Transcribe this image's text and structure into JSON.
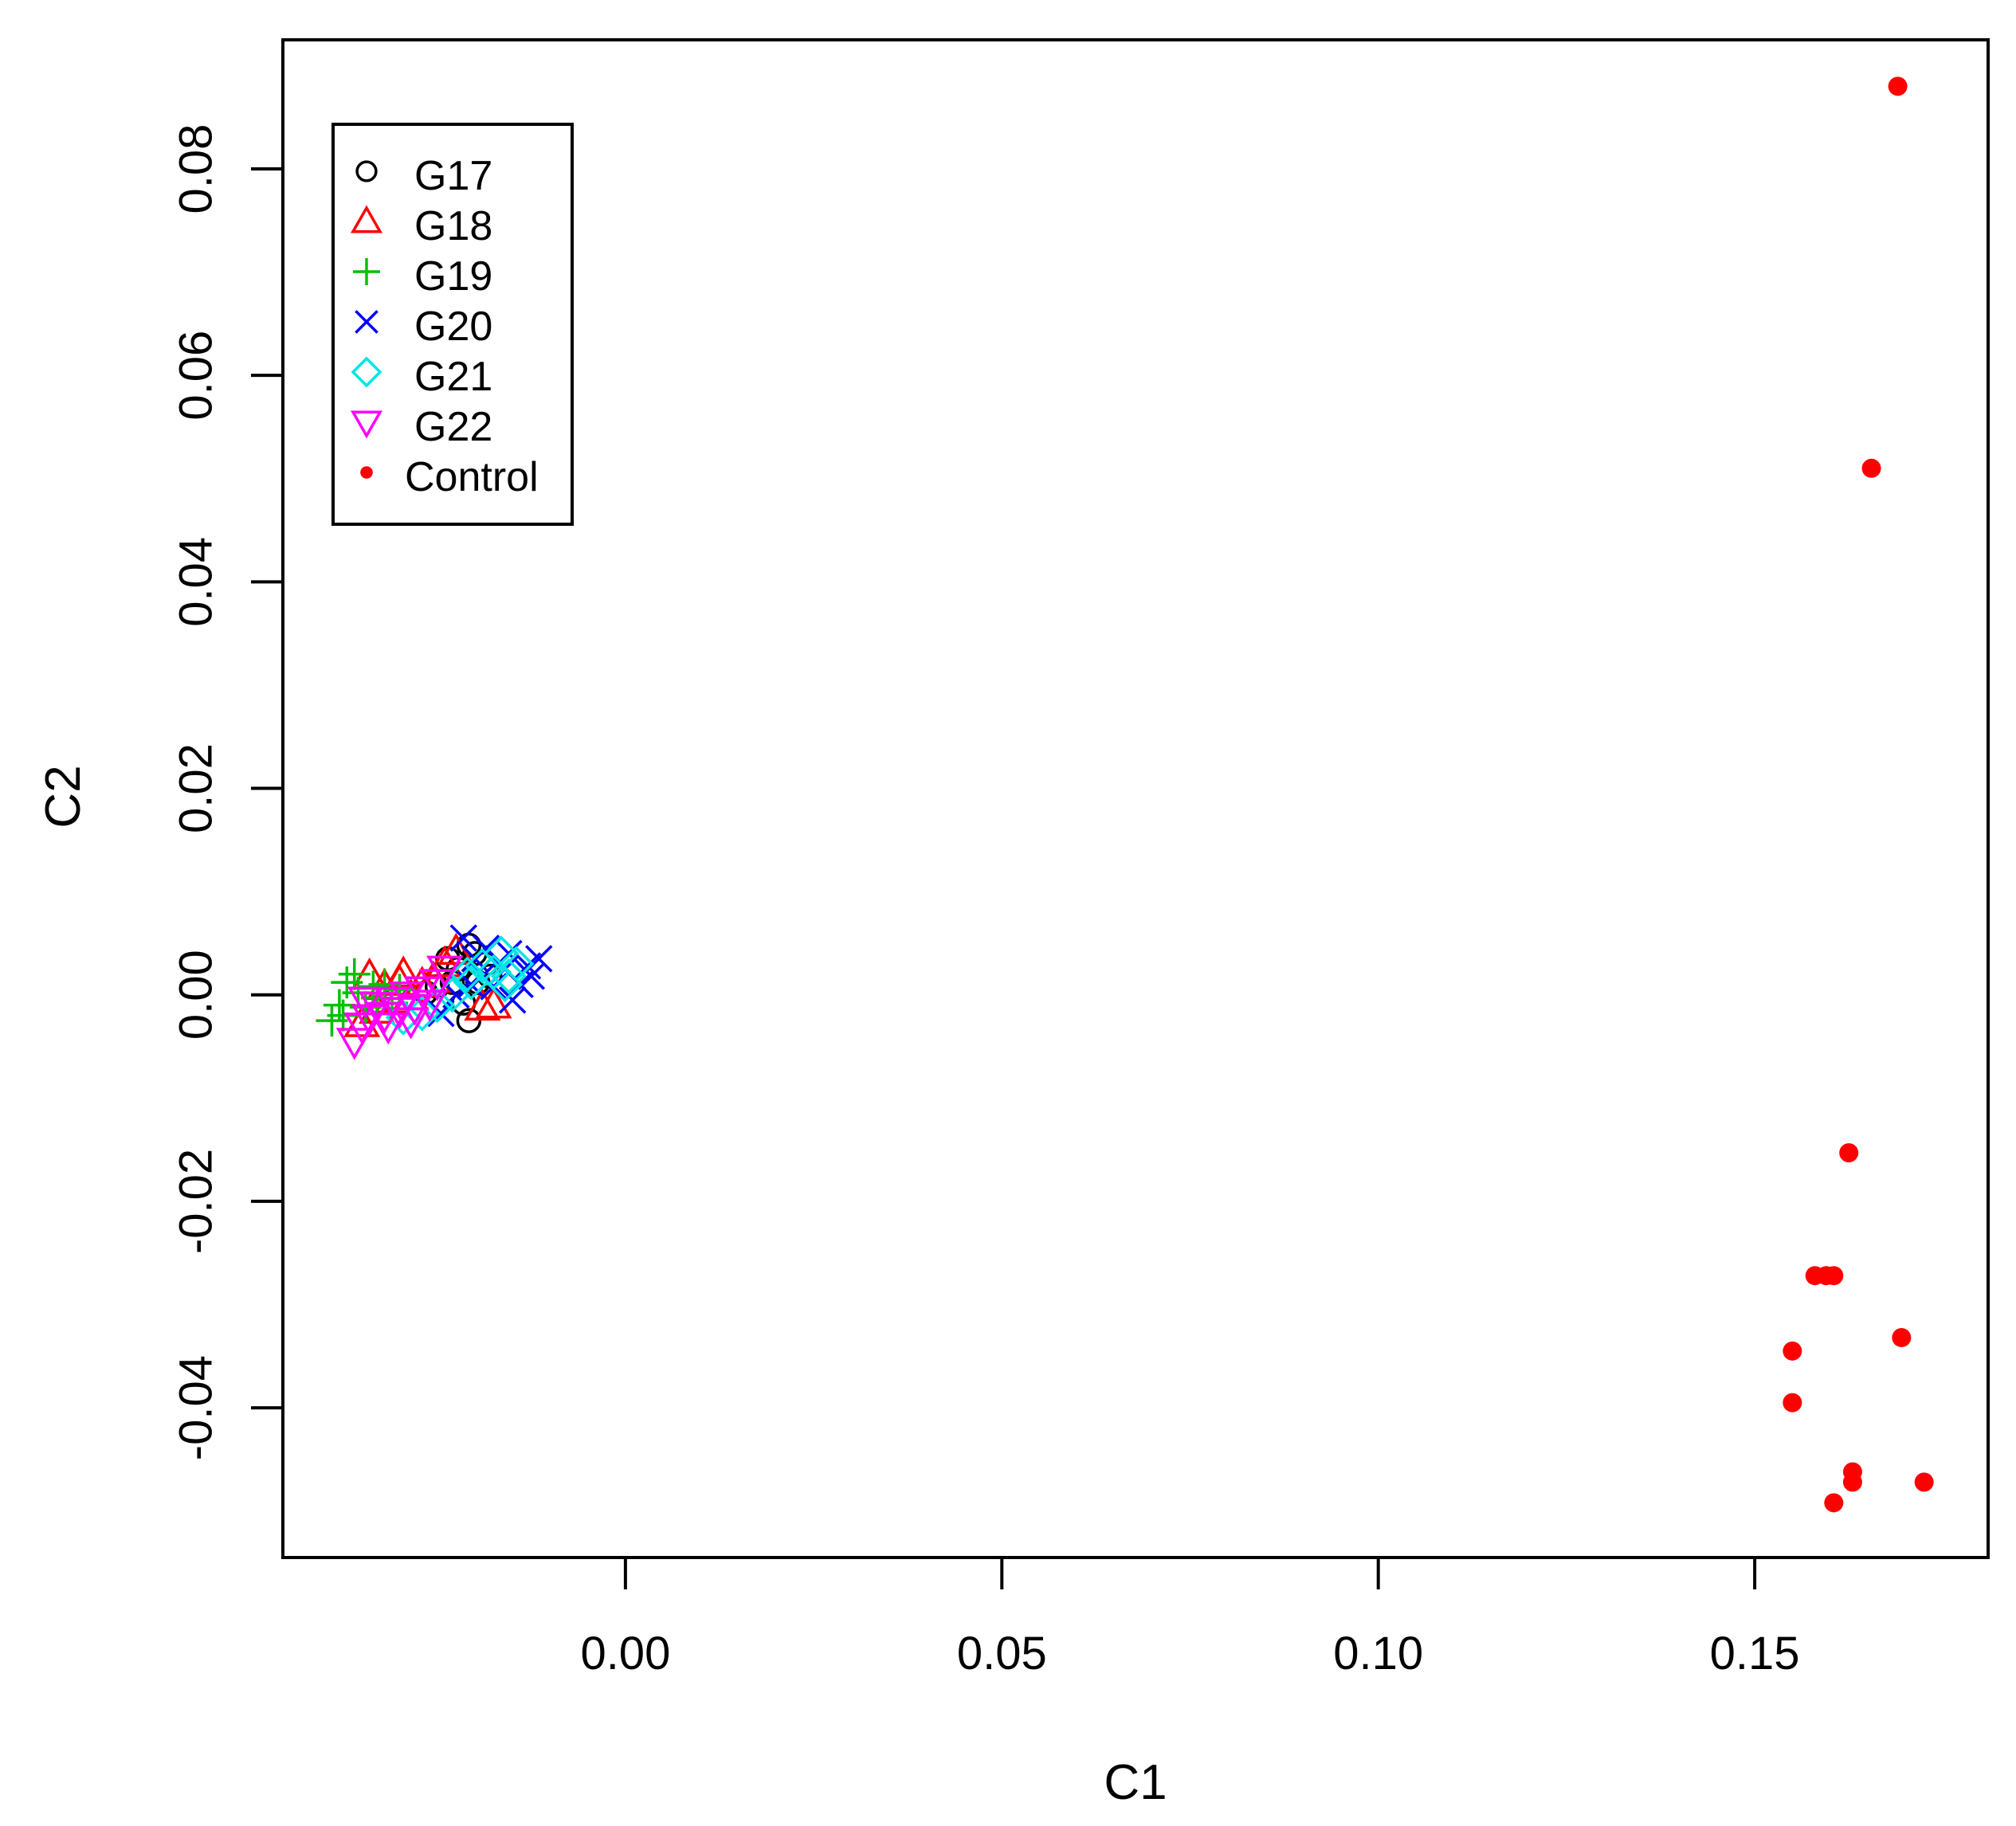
{
  "chart_data": {
    "type": "scatter",
    "title": "",
    "xlabel": "C1",
    "ylabel": "C2",
    "xlim": [
      -0.0455,
      0.181
    ],
    "ylim": [
      -0.0545,
      0.0925
    ],
    "x_ticks": [
      {
        "value": 0.0,
        "label": "0.00"
      },
      {
        "value": 0.05,
        "label": "0.05"
      },
      {
        "value": 0.1,
        "label": "0.10"
      },
      {
        "value": 0.15,
        "label": "0.15"
      }
    ],
    "y_ticks": [
      {
        "value": -0.04,
        "label": "-0.04"
      },
      {
        "value": -0.02,
        "label": "-0.02"
      },
      {
        "value": 0.0,
        "label": "0.00"
      },
      {
        "value": 0.02,
        "label": "0.02"
      },
      {
        "value": 0.04,
        "label": "0.04"
      },
      {
        "value": 0.06,
        "label": "0.06"
      },
      {
        "value": 0.08,
        "label": "0.08"
      }
    ],
    "grid": false,
    "legend_position": "top-left",
    "series": [
      {
        "name": "G17",
        "marker": "circle-open",
        "color": "#000000",
        "points": [
          [
            -0.0236,
            0.0035
          ],
          [
            -0.0222,
            0.0025
          ],
          [
            -0.0208,
            0.0048
          ],
          [
            -0.0196,
            0.0012
          ],
          [
            -0.0186,
            0.003
          ],
          [
            -0.025,
            0.0008
          ],
          [
            -0.0215,
            -0.0008
          ],
          [
            -0.0208,
            -0.0025
          ],
          [
            -0.018,
            0.0018
          ],
          [
            -0.023,
            0.0012
          ],
          [
            -0.0265,
            0.0002
          ],
          [
            -0.02,
            0.004
          ]
        ]
      },
      {
        "name": "G18",
        "marker": "triangle-up-open",
        "color": "#ff0000",
        "points": [
          [
            -0.034,
            0.0018
          ],
          [
            -0.032,
            0.0008
          ],
          [
            -0.03,
            0.0012
          ],
          [
            -0.0285,
            -0.0002
          ],
          [
            -0.027,
            0.001
          ],
          [
            -0.0255,
            0.0015
          ],
          [
            -0.024,
            0.003
          ],
          [
            -0.0225,
            0.0042
          ],
          [
            -0.035,
            -0.0028
          ],
          [
            -0.033,
            -0.0015
          ],
          [
            -0.031,
            -0.0005
          ],
          [
            -0.019,
            -0.0012
          ],
          [
            -0.0175,
            -0.001
          ],
          [
            -0.0295,
            0.002
          ]
        ]
      },
      {
        "name": "G19",
        "marker": "plus",
        "color": "#00c000",
        "points": [
          [
            -0.039,
            -0.0025
          ],
          [
            -0.038,
            -0.001
          ],
          [
            -0.037,
            0.0012
          ],
          [
            -0.036,
            0.002
          ],
          [
            -0.0355,
            0.0002
          ],
          [
            -0.0345,
            -0.0012
          ],
          [
            -0.0335,
            0.0008
          ],
          [
            -0.032,
            0.001
          ],
          [
            -0.031,
            -0.0008
          ],
          [
            -0.03,
            0.0005
          ],
          [
            -0.0375,
            -0.002
          ],
          [
            -0.033,
            -0.0003
          ]
        ]
      },
      {
        "name": "G20",
        "marker": "cross",
        "color": "#0000ff",
        "points": [
          [
            -0.0215,
            0.0055
          ],
          [
            -0.02,
            0.0035
          ],
          [
            -0.019,
            0.0018
          ],
          [
            -0.0175,
            0.0008
          ],
          [
            -0.016,
            0.0025
          ],
          [
            -0.015,
            -0.0005
          ],
          [
            -0.014,
            0.001
          ],
          [
            -0.0125,
            0.0018
          ],
          [
            -0.0115,
            0.0035
          ],
          [
            -0.013,
            0.0028
          ],
          [
            -0.0205,
            0.001
          ],
          [
            -0.0225,
            0.0
          ],
          [
            -0.0245,
            -0.0018
          ],
          [
            -0.0155,
            0.004
          ],
          [
            -0.0185,
            0.0045
          ]
        ]
      },
      {
        "name": "G21",
        "marker": "diamond-open",
        "color": "#00e5e5",
        "points": [
          [
            -0.0205,
            0.0012
          ],
          [
            -0.019,
            0.0028
          ],
          [
            -0.0175,
            0.0022
          ],
          [
            -0.0165,
            0.004
          ],
          [
            -0.0155,
            0.0018
          ],
          [
            -0.0145,
            0.003
          ],
          [
            -0.023,
            0.0
          ],
          [
            -0.025,
            -0.001
          ],
          [
            -0.027,
            -0.0018
          ],
          [
            -0.0295,
            -0.0022
          ],
          [
            -0.016,
            0.001
          ],
          [
            -0.021,
            0.002
          ]
        ]
      },
      {
        "name": "G22",
        "marker": "triangle-down-open",
        "color": "#ff00ff",
        "points": [
          [
            -0.036,
            -0.0045
          ],
          [
            -0.035,
            -0.003
          ],
          [
            -0.034,
            -0.0022
          ],
          [
            -0.033,
            -0.001
          ],
          [
            -0.032,
            -0.002
          ],
          [
            -0.031,
            -0.0005
          ],
          [
            -0.03,
            -0.0015
          ],
          [
            -0.029,
            0.0
          ],
          [
            -0.028,
            -0.0012
          ],
          [
            -0.027,
            0.0005
          ],
          [
            -0.026,
            -0.0008
          ],
          [
            -0.025,
            0.0012
          ],
          [
            -0.024,
            0.0025
          ],
          [
            -0.0345,
            -0.0005
          ],
          [
            -0.0315,
            -0.003
          ],
          [
            -0.0285,
            -0.0025
          ]
        ]
      },
      {
        "name": "Control",
        "marker": "filled-circle",
        "color": "#ff0000",
        "points": [
          [
            0.169,
            0.088
          ],
          [
            0.1655,
            0.051
          ],
          [
            0.1625,
            -0.0153
          ],
          [
            0.158,
            -0.0272
          ],
          [
            0.1595,
            -0.0272
          ],
          [
            0.1605,
            -0.0272
          ],
          [
            0.1695,
            -0.0332
          ],
          [
            0.155,
            -0.0345
          ],
          [
            0.155,
            -0.0395
          ],
          [
            0.163,
            -0.0462
          ],
          [
            0.163,
            -0.0472
          ],
          [
            0.1725,
            -0.0472
          ],
          [
            0.1605,
            -0.0492
          ]
        ]
      }
    ]
  }
}
